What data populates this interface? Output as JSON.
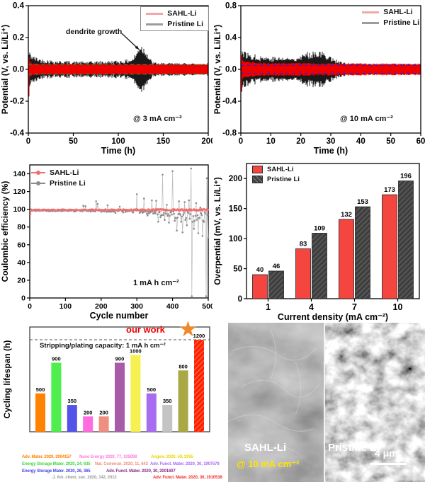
{
  "sem": {
    "label_left": "SAHL-Li",
    "label_left_condition": "@ 10 mA cm⁻²",
    "label_right": "Pristine Li",
    "scale_bar": "4 μm",
    "condition_color": "#ffe400"
  },
  "chart_data": [
    {
      "id": "voltage_3mA",
      "type": "line",
      "xlabel": "Time (h)",
      "ylabel": "Potential (V, vs. Li/Li⁺)",
      "xlim": [
        0,
        200
      ],
      "ylim": [
        -0.4,
        0.4
      ],
      "xticks": [
        0,
        50,
        100,
        150,
        200
      ],
      "yticks": [
        0.4,
        0.2,
        0.0,
        -0.2,
        -0.4
      ],
      "ytick_labels": [
        "0.4",
        "0.2",
        "0.0",
        "-0.2",
        "-0.4"
      ],
      "condition_label": "@ 3 mA cm⁻²",
      "legend": [
        {
          "label": "SAHL-Li",
          "color": "#f4a6a6"
        },
        {
          "label": "Pristine Li",
          "color": "#9c9c9c"
        }
      ],
      "legend_box": true,
      "annotation": {
        "text": "dendrite growth",
        "tail": [
          104,
          0.225
        ],
        "tip": [
          123,
          0.125
        ]
      },
      "guide": {
        "color": "#00a550",
        "y": [
          0.03,
          -0.03
        ]
      },
      "init_spikes": [
        {
          "t": 0.6,
          "from": -0.17,
          "to": 0.08,
          "color": "#ee0000"
        }
      ],
      "series": [
        {
          "name": "Pristine Li",
          "color": "#1a1a1a",
          "envelope": [
            [
              0,
              0.105
            ],
            [
              2,
              0.09
            ],
            [
              6,
              0.07
            ],
            [
              15,
              0.055
            ],
            [
              30,
              0.047
            ],
            [
              60,
              0.042
            ],
            [
              90,
              0.045
            ],
            [
              108,
              0.05
            ],
            [
              116,
              0.06
            ],
            [
              121,
              0.1
            ],
            [
              124,
              0.15
            ],
            [
              127,
              0.13
            ],
            [
              131,
              0.11
            ],
            [
              134,
              0.07
            ],
            [
              138,
              0.04
            ],
            [
              145,
              0.034
            ],
            [
              200,
              0.033
            ]
          ]
        },
        {
          "name": "SAHL-Li",
          "color": "#ee0000",
          "envelope": [
            [
              0,
              0.07
            ],
            [
              1,
              0.05
            ],
            [
              4,
              0.037
            ],
            [
              10,
              0.032
            ],
            [
              200,
              0.03
            ]
          ]
        }
      ]
    },
    {
      "id": "voltage_10mA",
      "type": "line",
      "xlabel": "Time (h)",
      "ylabel": "Potential (V, vs. Li/Li⁺)",
      "xlim": [
        0,
        60
      ],
      "ylim": [
        -0.8,
        0.8
      ],
      "xticks": [
        0,
        10,
        20,
        30,
        40,
        50,
        60
      ],
      "yticks": [
        0.8,
        0.4,
        0.0,
        -0.4,
        -0.8
      ],
      "ytick_labels": [
        "0.8",
        "0.4",
        "0.0",
        "-0.4",
        "-0.8"
      ],
      "condition_label": "@ 10 mA cm⁻²",
      "legend": [
        {
          "label": "SAHL-Li",
          "color": "#f4a6a6"
        },
        {
          "label": "Pristine Li",
          "color": "#9c9c9c"
        }
      ],
      "legend_box": false,
      "guide": {
        "color": "#2222dd",
        "y": [
          0.05,
          -0.05
        ]
      },
      "init_spikes": [
        {
          "t": 0.3,
          "from": -0.28,
          "to": 0.18,
          "color": "#ee0000"
        }
      ],
      "series": [
        {
          "name": "Pristine Li",
          "color": "#1a1a1a",
          "envelope": [
            [
              0,
              0.23
            ],
            [
              1,
              0.2
            ],
            [
              3,
              0.17
            ],
            [
              6,
              0.15
            ],
            [
              10,
              0.135
            ],
            [
              17,
              0.13
            ],
            [
              19,
              0.15
            ],
            [
              21,
              0.17
            ],
            [
              23,
              0.19
            ],
            [
              25,
              0.21
            ],
            [
              27,
              0.19
            ],
            [
              28.5,
              0.17
            ],
            [
              30,
              0.14
            ],
            [
              31.5,
              0.11
            ],
            [
              33,
              0.085
            ],
            [
              35,
              0.07
            ],
            [
              38,
              0.062
            ],
            [
              60,
              0.06
            ]
          ]
        },
        {
          "name": "SAHL-Li",
          "color": "#ee0000",
          "envelope": [
            [
              0,
              0.14
            ],
            [
              1,
              0.1
            ],
            [
              3,
              0.085
            ],
            [
              8,
              0.075
            ],
            [
              60,
              0.065
            ]
          ]
        }
      ]
    },
    {
      "id": "coulombic_efficiency",
      "type": "scatter",
      "xlabel": "Cycle number",
      "ylabel": "Coulombic efficiency (%)",
      "xlim": [
        0,
        500
      ],
      "ylim": [
        0,
        150
      ],
      "xticks": [
        0,
        100,
        200,
        300,
        400,
        500
      ],
      "yticks": [
        0,
        20,
        40,
        60,
        80,
        100,
        120,
        140
      ],
      "note": "1 mA h cm⁻²",
      "legend": [
        {
          "label": "SAHL-Li",
          "color": "#f26d6d"
        },
        {
          "label": "Pristine Li",
          "color": "#8c8c8c"
        }
      ],
      "step": 2,
      "series": [
        {
          "name": "Pristine Li",
          "color": "#8c8c8c",
          "line_color": "#b0b0b0",
          "baseline": [
            [
              0,
              98.6
            ],
            [
              280,
              98.2
            ],
            [
              360,
              96.5
            ],
            [
              420,
              93
            ],
            [
              500,
              89
            ]
          ],
          "noise": [
            [
              0,
              0.6
            ],
            [
              150,
              1.0
            ],
            [
              300,
              1.6
            ],
            [
              380,
              3.5
            ],
            [
              440,
              5.5
            ],
            [
              500,
              7
            ]
          ],
          "outliers": [
            [
              150,
              104
            ],
            [
              156,
              103.5
            ],
            [
              186,
              109
            ],
            [
              190,
              106
            ],
            [
              218,
              104.5
            ],
            [
              240,
              96
            ],
            [
              252,
              103
            ],
            [
              262,
              96.5
            ],
            [
              300,
              117
            ],
            [
              308,
              96
            ],
            [
              320,
              112
            ],
            [
              330,
              93
            ],
            [
              342,
              110
            ],
            [
              354,
              109.5
            ],
            [
              360,
              86
            ],
            [
              366,
              91
            ],
            [
              372,
              139
            ],
            [
              378,
              88
            ],
            [
              384,
              105
            ],
            [
              390,
              85
            ],
            [
              400,
              143
            ],
            [
              406,
              87
            ],
            [
              412,
              76
            ],
            [
              418,
              109
            ],
            [
              424,
              86
            ],
            [
              428,
              74
            ],
            [
              434,
              108
            ],
            [
              440,
              82
            ],
            [
              446,
              110
            ],
            [
              452,
              146
            ],
            [
              454,
              2
            ],
            [
              460,
              78
            ],
            [
              466,
              107
            ],
            [
              472,
              73
            ],
            [
              478,
              102
            ],
            [
              484,
              70
            ],
            [
              490,
              97
            ],
            [
              494,
              2
            ],
            [
              496,
              135
            ],
            [
              500,
              68
            ]
          ]
        },
        {
          "name": "SAHL-Li",
          "color": "#f26d6d",
          "line_color": "#f59a9a",
          "baseline": [
            [
              0,
              99.3
            ],
            [
              500,
              99.3
            ]
          ],
          "noise": [
            [
              0,
              0.6
            ],
            [
              300,
              0.9
            ],
            [
              500,
              1.2
            ]
          ],
          "outliers": [
            [
              2,
              94.5
            ]
          ]
        }
      ]
    },
    {
      "id": "overpotential_bars",
      "type": "bar",
      "xlabel": "Current density (mA cm⁻²)",
      "ylabel": "Overpential (mV, vs. Li/Li⁺)",
      "categories": [
        "1",
        "4",
        "7",
        "10"
      ],
      "ylim": [
        0,
        225
      ],
      "yticks": [
        0,
        50,
        100,
        150,
        200
      ],
      "series": [
        {
          "name": "SAHL-Li",
          "color": "#f4453f",
          "hatch": false,
          "values": [
            40,
            83,
            132,
            173
          ]
        },
        {
          "name": "Pristine Li",
          "color": "#3f3f3f",
          "hatch": true,
          "values": [
            46,
            109,
            153,
            196
          ]
        }
      ]
    },
    {
      "id": "cycling_lifespan",
      "type": "bar",
      "ylabel": "Cycling lifespan (h)",
      "values": [
        500,
        900,
        350,
        200,
        200,
        900,
        1000,
        500,
        350,
        800,
        1200
      ],
      "colors": [
        "#ff8200",
        "#4dee4d",
        "#5353ea",
        "#ff6ce0",
        "#ef8f80",
        "#a85ca8",
        "#f6f150",
        "#a86cf0",
        "#c4c4c4",
        "#aaa845",
        "#ff2200"
      ],
      "our_work_index": 10,
      "dashed_y": 1200,
      "ylim": [
        0,
        1365
      ],
      "our_work": "our work",
      "our_work_color": "#ee0000",
      "star_color": "#f08a28",
      "capacity_note": "Stripping/plating capacity: 1 mA h cm⁻²",
      "citations": [
        {
          "text": "Adv. Mater. 2020, 2004157",
          "color": "#ff8200"
        },
        {
          "text": "Nano Energy 2020, 77, 105098",
          "color": "#ff7ce0"
        },
        {
          "text": "Angew. 2020, 59, 2055",
          "color": "#e8d800"
        },
        {
          "text": "Energy Storage Mater. 2020, 24, 635",
          "color": "#3fd83f"
        },
        {
          "text": "Nat. Commun. 2020, 11, 643",
          "color": "#ef8f80"
        },
        {
          "text": "Adv. Funct. Mater. 2020, 30, 1907579",
          "color": "#a86cf0"
        },
        {
          "text": "Energy Storage Mater. 2020, 26, 365",
          "color": "#4646e8"
        },
        {
          "text": "Adv. Funct. Mater. 2020, 30, 2001607",
          "color": "#8c2a8c"
        },
        {
          "text": "J. Am. chem. soc. 2020, 142, 2012",
          "color": "#9a9a9a"
        },
        {
          "text": "Adv. Funct. Mater. 2020, 30, 1910538",
          "color": "#f03030"
        }
      ]
    }
  ]
}
